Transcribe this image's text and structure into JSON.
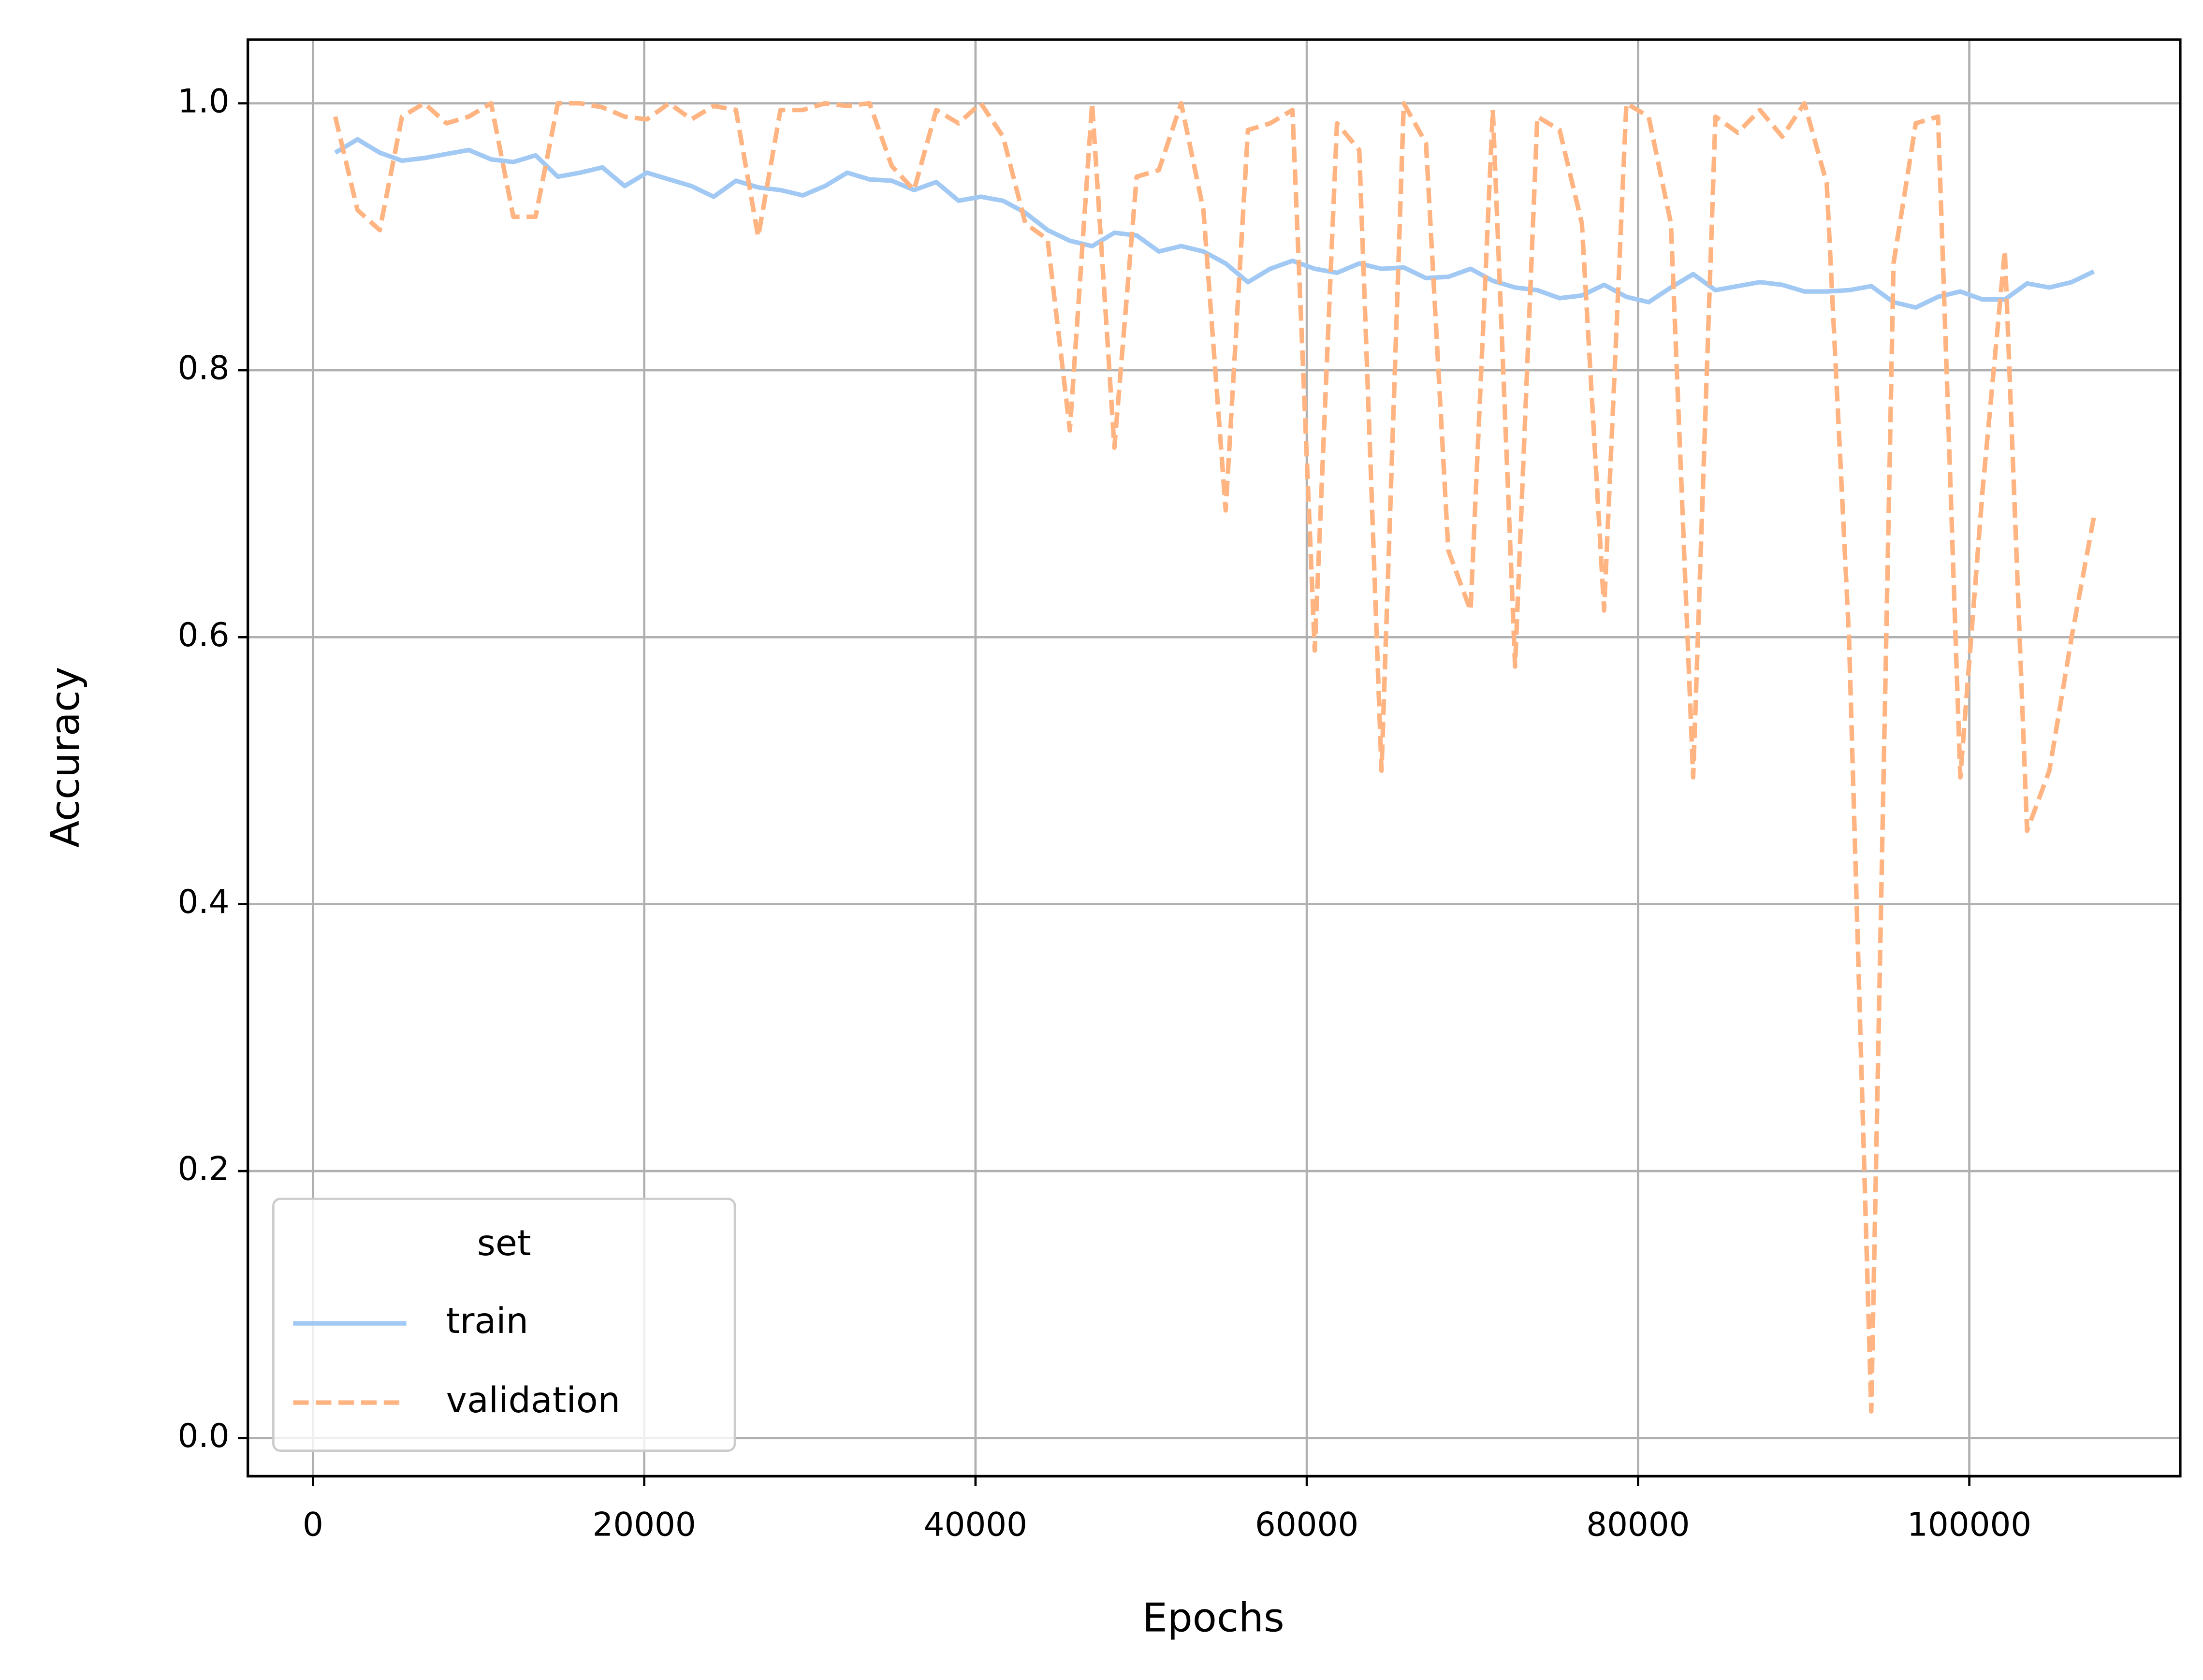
{
  "chart_data": {
    "type": "line",
    "xlabel": "Epochs",
    "ylabel": "Accuracy",
    "x": [
      1344,
      2688,
      4032,
      5376,
      6720,
      8064,
      9408,
      10752,
      12096,
      13440,
      14784,
      16128,
      17472,
      18816,
      20160,
      21504,
      22848,
      24192,
      25536,
      26880,
      28224,
      29568,
      30912,
      32256,
      33600,
      34944,
      36288,
      37632,
      38976,
      40320,
      41664,
      43008,
      44352,
      45696,
      47040,
      48384,
      49728,
      51072,
      52416,
      53760,
      55104,
      56448,
      57792,
      59136,
      60480,
      61824,
      63168,
      64512,
      65856,
      67200,
      68544,
      69888,
      71232,
      72576,
      73920,
      75264,
      76608,
      77952,
      79296,
      80640,
      81984,
      83328,
      84672,
      86016,
      87360,
      88704,
      90048,
      91392,
      92736,
      94080,
      95424,
      96768,
      98112,
      99456,
      100800,
      102144,
      103488,
      104832,
      106176,
      107520
    ],
    "series": [
      {
        "name": "train",
        "color": "#a1c9f4",
        "linestyle": "solid",
        "values": [
          0.963,
          0.973,
          0.963,
          0.957,
          0.959,
          0.962,
          0.965,
          0.958,
          0.956,
          0.961,
          0.945,
          0.948,
          0.952,
          0.938,
          0.948,
          0.943,
          0.938,
          0.93,
          0.942,
          0.937,
          0.935,
          0.931,
          0.938,
          0.948,
          0.943,
          0.942,
          0.935,
          0.941,
          0.927,
          0.93,
          0.927,
          0.918,
          0.905,
          0.897,
          0.893,
          0.903,
          0.901,
          0.889,
          0.893,
          0.889,
          0.88,
          0.866,
          0.876,
          0.882,
          0.876,
          0.873,
          0.88,
          0.876,
          0.877,
          0.869,
          0.87,
          0.876,
          0.867,
          0.862,
          0.86,
          0.854,
          0.856,
          0.864,
          0.855,
          0.851,
          0.862,
          0.872,
          0.86,
          0.863,
          0.866,
          0.864,
          0.859,
          0.859,
          0.86,
          0.863,
          0.851,
          0.847,
          0.855,
          0.859,
          0.853,
          0.853,
          0.865,
          0.862,
          0.866,
          0.874
        ]
      },
      {
        "name": "validation",
        "color": "#ffb482",
        "linestyle": "dashed",
        "values": [
          0.99,
          0.92,
          0.905,
          0.99,
          1.0,
          0.985,
          0.99,
          1.0,
          0.915,
          0.915,
          1.0,
          1.0,
          0.997,
          0.99,
          0.988,
          1.0,
          0.988,
          0.998,
          0.995,
          0.9,
          0.995,
          0.995,
          1.0,
          0.998,
          1.0,
          0.953,
          0.935,
          0.995,
          0.985,
          1.0,
          0.975,
          0.91,
          0.898,
          0.755,
          1.0,
          0.742,
          0.945,
          0.95,
          1.0,
          0.92,
          0.695,
          0.98,
          0.985,
          0.995,
          0.59,
          0.985,
          0.965,
          0.5,
          1.0,
          0.97,
          0.665,
          0.62,
          0.995,
          0.578,
          0.99,
          0.98,
          0.91,
          0.62,
          1.0,
          0.99,
          0.91,
          0.495,
          0.99,
          0.978,
          0.995,
          0.975,
          1.0,
          0.94,
          0.6,
          0.02,
          0.88,
          0.985,
          0.99,
          0.495,
          0.71,
          0.89,
          0.455,
          0.5,
          0.6,
          0.69
        ]
      }
    ],
    "xlim": [
      -3932,
      112735
    ],
    "ylim": [
      -0.0286,
      1.0477
    ],
    "xticks": [
      0,
      20000,
      40000,
      60000,
      80000,
      100000
    ],
    "yticks": [
      {
        "value": 0,
        "label": "0.0"
      },
      {
        "value": 0.2,
        "label": "0.2"
      },
      {
        "value": 0.4,
        "label": "0.4"
      },
      {
        "value": 0.6,
        "label": "0.6"
      },
      {
        "value": 0.8,
        "label": "0.8"
      },
      {
        "value": 1.0,
        "label": "1.0"
      }
    ],
    "grid": true,
    "legend_title": "set",
    "legend": "lower left"
  }
}
